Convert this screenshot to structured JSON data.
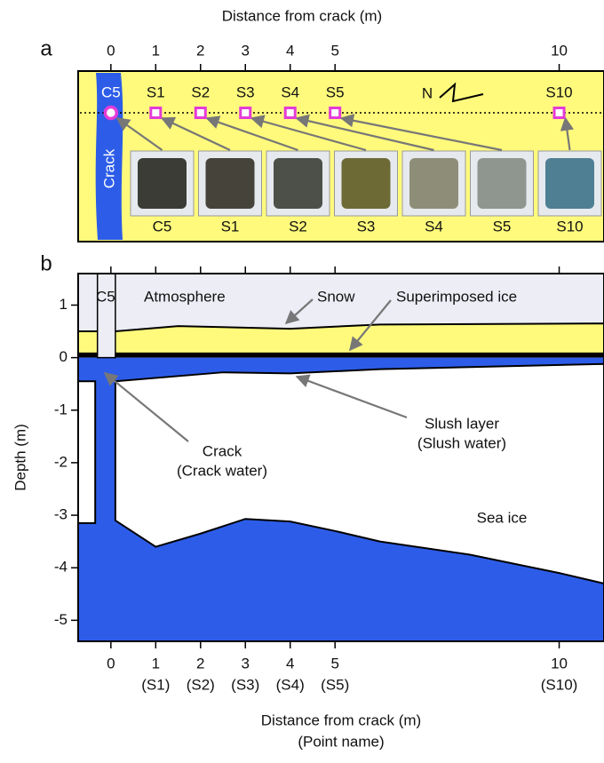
{
  "panel_a": {
    "label": "a",
    "axis_title": "Distance from crack (m)",
    "xlim": [
      -0.73,
      11
    ],
    "xticks": [
      0,
      1,
      2,
      3,
      4,
      5,
      10
    ],
    "crack_label": "Crack",
    "north": "N",
    "points": [
      {
        "name": "C5",
        "x": 0
      },
      {
        "name": "S1",
        "x": 1
      },
      {
        "name": "S2",
        "x": 2
      },
      {
        "name": "S3",
        "x": 3
      },
      {
        "name": "S4",
        "x": 4
      },
      {
        "name": "S5",
        "x": 5
      },
      {
        "name": "S10",
        "x": 10
      }
    ],
    "photos": [
      {
        "label": "C5",
        "color": "#3b3c36"
      },
      {
        "label": "S1",
        "color": "#46433a"
      },
      {
        "label": "S2",
        "color": "#4c5048"
      },
      {
        "label": "S3",
        "color": "#6e6a36"
      },
      {
        "label": "S4",
        "color": "#8e8d78"
      },
      {
        "label": "S5",
        "color": "#8f9690"
      },
      {
        "label": "S10",
        "color": "#4f7f93"
      }
    ]
  },
  "panel_b": {
    "label": "b",
    "y_title": "Depth (m)",
    "x_title": "Distance from crack (m)",
    "x_subtitle": "(Point name)",
    "xlim": [
      -0.73,
      11
    ],
    "ylim": [
      -5.4,
      1.6
    ],
    "xticks": [
      {
        "value": 0,
        "label": "0"
      },
      {
        "value": 1,
        "label": "1",
        "point": "(S1)"
      },
      {
        "value": 2,
        "label": "2",
        "point": "(S2)"
      },
      {
        "value": 3,
        "label": "3",
        "point": "(S3)"
      },
      {
        "value": 4,
        "label": "4",
        "point": "(S4)"
      },
      {
        "value": 5,
        "label": "5",
        "point": "(S5)"
      },
      {
        "value": 10,
        "label": "10",
        "point": "(S10)"
      }
    ],
    "yticks": [
      1,
      0,
      -1,
      -2,
      -3,
      -4,
      -5
    ],
    "annotations": {
      "c5": "C5",
      "atmosphere": "Atmosphere",
      "snow": "Snow",
      "superimposed_ice": "Superimposed ice",
      "slush": "Slush layer",
      "slush_water": "(Slush water)",
      "crack": "Crack",
      "crack_water": "(Crack water)",
      "sea_ice": "Sea ice"
    },
    "snow_surface": {
      "x": [
        -0.73,
        -0.3,
        0.1,
        1.5,
        4,
        6,
        11
      ],
      "y": [
        0.5,
        0.5,
        0.5,
        0.6,
        0.55,
        0.63,
        0.65
      ]
    },
    "dark_layer": {
      "top": 0.08,
      "bottom": 0
    },
    "crack": {
      "x": [
        -0.3,
        0.1
      ]
    },
    "slush_bottom": {
      "x": [
        0.1,
        2.5,
        4,
        6,
        11
      ],
      "y": [
        -0.45,
        -0.28,
        -0.3,
        -0.22,
        -0.12
      ]
    },
    "ice_bottom": {
      "x": [
        0.1,
        1,
        2,
        3,
        4,
        5,
        6,
        8,
        10,
        11
      ],
      "y": [
        -3.1,
        -3.6,
        -3.35,
        -3.07,
        -3.12,
        -3.3,
        -3.5,
        -3.75,
        -4.1,
        -4.3
      ]
    },
    "left_ice": {
      "x": [
        -0.73,
        -0.35
      ],
      "y": [
        -0.45,
        -3.15
      ]
    },
    "colors": {
      "water": "#2d5de8",
      "ice_surface": "#fffa7c",
      "atmosphere": "#ecedf5",
      "sea_ice": "#ffffff"
    }
  }
}
